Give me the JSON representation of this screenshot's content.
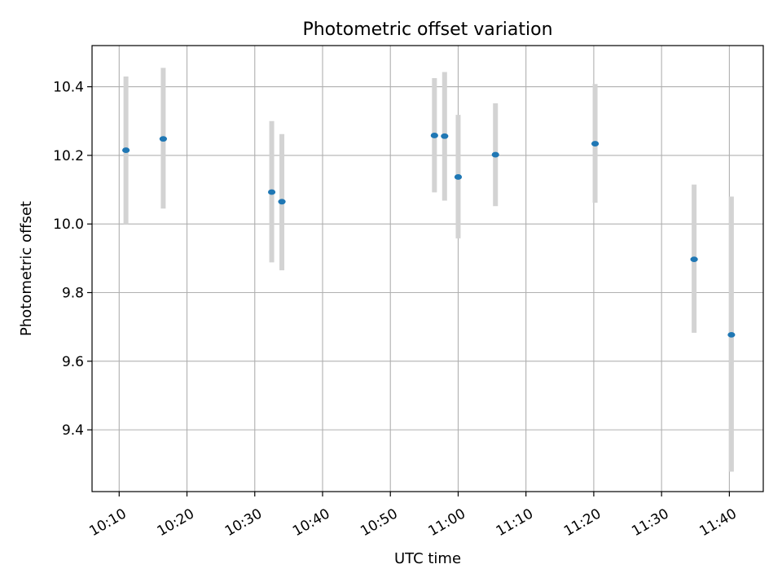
{
  "chart_data": {
    "type": "scatter",
    "title": "Photometric offset variation",
    "xlabel": "UTC time",
    "ylabel": "Photometric offset",
    "grid": true,
    "xlim": [
      "10:06",
      "11:45"
    ],
    "ylim": [
      9.22,
      10.52
    ],
    "x_ticks": [
      "10:10",
      "10:20",
      "10:30",
      "10:40",
      "10:50",
      "11:00",
      "11:10",
      "11:20",
      "11:30",
      "11:40"
    ],
    "y_ticks": [
      9.4,
      9.6,
      9.8,
      10.0,
      10.2,
      10.4
    ],
    "y_tick_labels": [
      "9.4",
      "9.6",
      "9.8",
      "10.0",
      "10.2",
      "10.4"
    ],
    "colors": {
      "point": "#1f77b4",
      "errorbar": "#d3d3d3"
    },
    "series": [
      {
        "points": [
          {
            "x": "10:11",
            "y": 10.215,
            "yerr_low": 10.0,
            "yerr_high": 10.43
          },
          {
            "x": "10:16.5",
            "y": 10.248,
            "yerr_low": 10.045,
            "yerr_high": 10.455
          },
          {
            "x": "10:32.5",
            "y": 10.093,
            "yerr_low": 9.888,
            "yerr_high": 10.3
          },
          {
            "x": "10:34",
            "y": 10.065,
            "yerr_low": 9.865,
            "yerr_high": 10.262
          },
          {
            "x": "10:56.5",
            "y": 10.258,
            "yerr_low": 10.092,
            "yerr_high": 10.425
          },
          {
            "x": "10:58",
            "y": 10.256,
            "yerr_low": 10.068,
            "yerr_high": 10.443
          },
          {
            "x": "10:60",
            "y": 10.137,
            "yerr_low": 9.958,
            "yerr_high": 10.318
          },
          {
            "x": "11:05.5",
            "y": 10.202,
            "yerr_low": 10.052,
            "yerr_high": 10.352
          },
          {
            "x": "11:20.2",
            "y": 10.234,
            "yerr_low": 10.062,
            "yerr_high": 10.408
          },
          {
            "x": "11:34.8",
            "y": 9.897,
            "yerr_low": 9.683,
            "yerr_high": 10.115
          },
          {
            "x": "11:40.3",
            "y": 9.677,
            "yerr_low": 9.278,
            "yerr_high": 10.08
          }
        ]
      }
    ]
  }
}
